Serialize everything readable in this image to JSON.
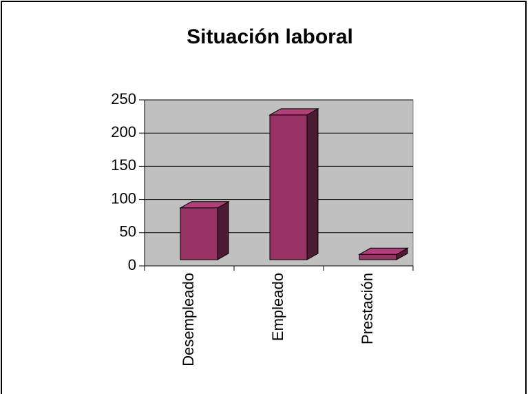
{
  "chart_data": {
    "type": "bar3d",
    "title": "Situación laboral",
    "categories": [
      "Desempleado",
      "Empleado",
      "Prestación"
    ],
    "values": [
      78,
      218,
      8
    ],
    "color": "#993366",
    "ylim": [
      0,
      250
    ],
    "yticks": [
      0,
      50,
      100,
      150,
      200,
      250
    ],
    "grid": true
  }
}
